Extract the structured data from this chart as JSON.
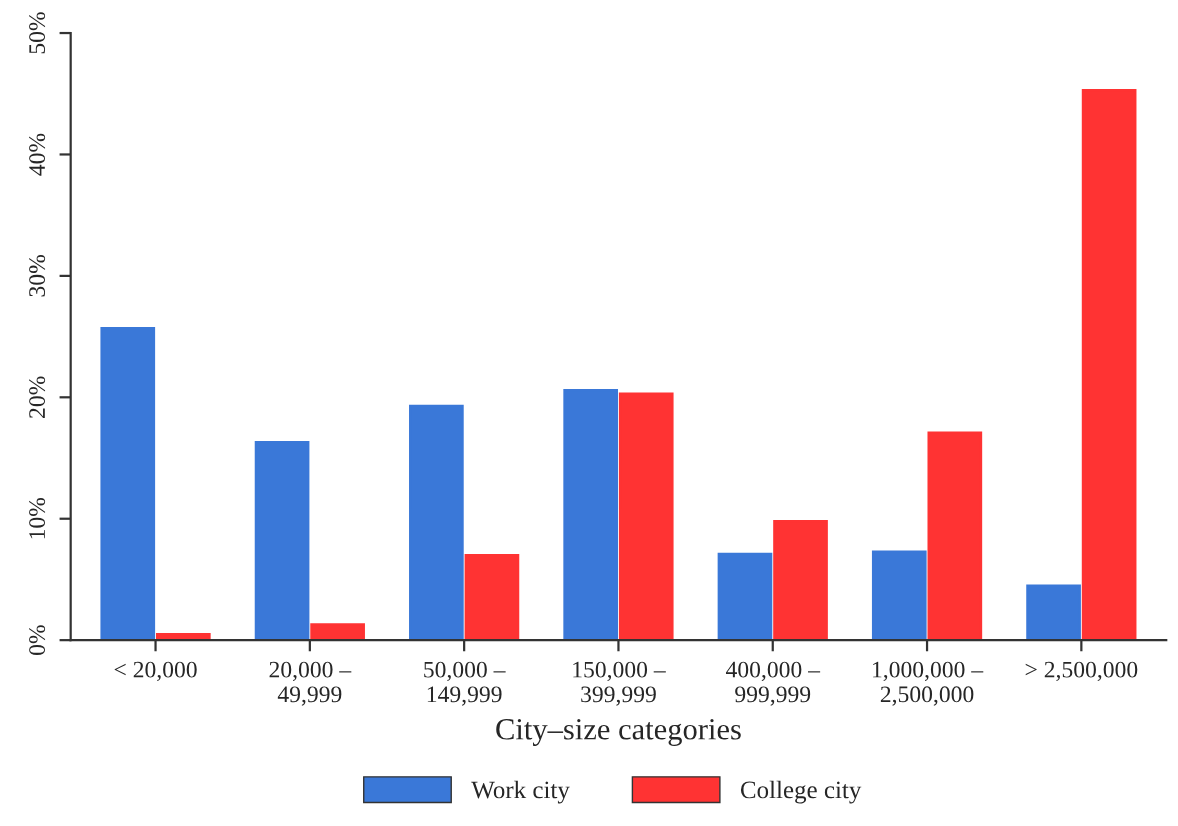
{
  "chart_data": {
    "type": "bar",
    "xlabel": "City–size categories",
    "categories": [
      "< 20,000",
      "20,000 –\n49,999",
      "50,000 –\n149,999",
      "150,000 –\n399,999",
      "400,000 –\n999,999",
      "1,000,000 –\n2,500,000",
      "> 2,500,000"
    ],
    "series": [
      {
        "name": "Work city",
        "color": "#3a78d8",
        "values": [
          25.7,
          16.3,
          19.3,
          20.6,
          7.1,
          7.3,
          4.5
        ]
      },
      {
        "name": "College city",
        "color": "#ff3333",
        "values": [
          0.5,
          1.3,
          7.0,
          20.3,
          9.8,
          17.1,
          45.3
        ]
      }
    ],
    "ylim": [
      0,
      50
    ],
    "yticks": [
      {
        "value": 0,
        "label": "0%"
      },
      {
        "value": 10,
        "label": "10%"
      },
      {
        "value": 20,
        "label": "20%"
      },
      {
        "value": 30,
        "label": "30%"
      },
      {
        "value": 40,
        "label": "40%"
      },
      {
        "value": 50,
        "label": "50%"
      }
    ],
    "grid": false,
    "legend": "bottom"
  }
}
